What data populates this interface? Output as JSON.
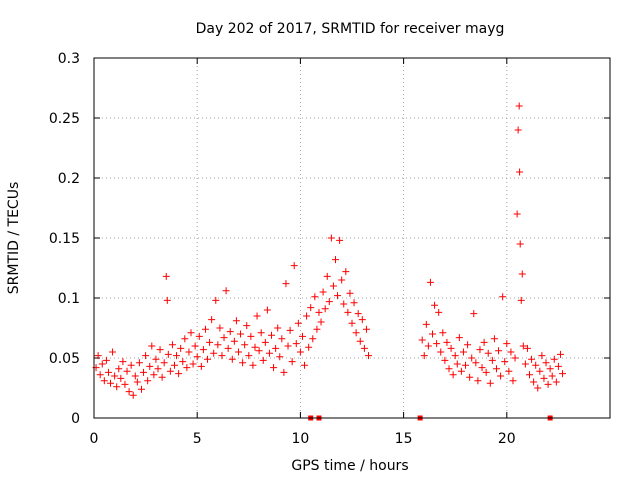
{
  "chart_data": {
    "type": "scatter",
    "title": "Day 202 of 2017, SRMTID for receiver mayg",
    "xlabel": "GPS time / hours",
    "ylabel": "SRMTID / TECUs",
    "xlim": [
      0,
      25
    ],
    "ylim": [
      0,
      0.3
    ],
    "xticks": [
      0,
      5,
      10,
      15,
      20
    ],
    "xtick_labels": [
      "0",
      "5",
      "10",
      "15",
      "20"
    ],
    "yticks": [
      0,
      0.05,
      0.1,
      0.15,
      0.2,
      0.25,
      0.3
    ],
    "ytick_labels": [
      "0",
      "0.05",
      "0.1",
      "0.15",
      "0.2",
      "0.25",
      "0.3"
    ],
    "grid": true,
    "marker": "+",
    "colors": {
      "series": "#ff0000",
      "grid": "#a0a0a0",
      "axis": "#000000"
    },
    "series": [
      {
        "name": "SRMTID",
        "gaps": [
          [
            13.4,
            15.8
          ],
          [
            22.9,
            25
          ]
        ],
        "points": [
          [
            0.1,
            0.042
          ],
          [
            0.2,
            0.052
          ],
          [
            0.3,
            0.036
          ],
          [
            0.4,
            0.045
          ],
          [
            0.5,
            0.031
          ],
          [
            0.6,
            0.048
          ],
          [
            0.7,
            0.038
          ],
          [
            0.8,
            0.029
          ],
          [
            0.9,
            0.055
          ],
          [
            1.0,
            0.035
          ],
          [
            1.1,
            0.026
          ],
          [
            1.2,
            0.041
          ],
          [
            1.3,
            0.033
          ],
          [
            1.4,
            0.047
          ],
          [
            1.5,
            0.028
          ],
          [
            1.6,
            0.039
          ],
          [
            1.7,
            0.022
          ],
          [
            1.8,
            0.044
          ],
          [
            1.9,
            0.019
          ],
          [
            2.0,
            0.035
          ],
          [
            2.1,
            0.03
          ],
          [
            2.2,
            0.046
          ],
          [
            2.3,
            0.024
          ],
          [
            2.4,
            0.038
          ],
          [
            2.5,
            0.052
          ],
          [
            2.6,
            0.031
          ],
          [
            2.7,
            0.043
          ],
          [
            2.8,
            0.06
          ],
          [
            2.9,
            0.036
          ],
          [
            3.0,
            0.049
          ],
          [
            3.1,
            0.041
          ],
          [
            3.2,
            0.057
          ],
          [
            3.3,
            0.034
          ],
          [
            3.4,
            0.046
          ],
          [
            3.5,
            0.118
          ],
          [
            3.55,
            0.098
          ],
          [
            3.6,
            0.053
          ],
          [
            3.7,
            0.039
          ],
          [
            3.8,
            0.061
          ],
          [
            3.9,
            0.044
          ],
          [
            4.0,
            0.052
          ],
          [
            4.1,
            0.037
          ],
          [
            4.2,
            0.058
          ],
          [
            4.3,
            0.047
          ],
          [
            4.4,
            0.066
          ],
          [
            4.5,
            0.042
          ],
          [
            4.6,
            0.055
          ],
          [
            4.7,
            0.071
          ],
          [
            4.8,
            0.045
          ],
          [
            4.9,
            0.06
          ],
          [
            5.0,
            0.051
          ],
          [
            5.1,
            0.068
          ],
          [
            5.2,
            0.043
          ],
          [
            5.3,
            0.057
          ],
          [
            5.4,
            0.074
          ],
          [
            5.5,
            0.049
          ],
          [
            5.6,
            0.063
          ],
          [
            5.7,
            0.082
          ],
          [
            5.8,
            0.054
          ],
          [
            5.9,
            0.098
          ],
          [
            6.0,
            0.061
          ],
          [
            6.1,
            0.075
          ],
          [
            6.2,
            0.052
          ],
          [
            6.3,
            0.067
          ],
          [
            6.4,
            0.106
          ],
          [
            6.5,
            0.058
          ],
          [
            6.6,
            0.072
          ],
          [
            6.7,
            0.049
          ],
          [
            6.8,
            0.064
          ],
          [
            6.9,
            0.081
          ],
          [
            7.0,
            0.055
          ],
          [
            7.1,
            0.07
          ],
          [
            7.2,
            0.046
          ],
          [
            7.3,
            0.061
          ],
          [
            7.4,
            0.077
          ],
          [
            7.5,
            0.052
          ],
          [
            7.6,
            0.068
          ],
          [
            7.7,
            0.044
          ],
          [
            7.8,
            0.059
          ],
          [
            7.9,
            0.085
          ],
          [
            8.0,
            0.056
          ],
          [
            8.1,
            0.071
          ],
          [
            8.2,
            0.048
          ],
          [
            8.3,
            0.063
          ],
          [
            8.4,
            0.09
          ],
          [
            8.5,
            0.054
          ],
          [
            8.6,
            0.069
          ],
          [
            8.7,
            0.042
          ],
          [
            8.8,
            0.058
          ],
          [
            8.9,
            0.075
          ],
          [
            9.0,
            0.051
          ],
          [
            9.1,
            0.066
          ],
          [
            9.2,
            0.038
          ],
          [
            9.3,
            0.112
          ],
          [
            9.4,
            0.06
          ],
          [
            9.5,
            0.073
          ],
          [
            9.6,
            0.047
          ],
          [
            9.7,
            0.127
          ],
          [
            9.8,
            0.062
          ],
          [
            9.9,
            0.079
          ],
          [
            10.0,
            0.055
          ],
          [
            10.1,
            0.068
          ],
          [
            10.2,
            0.044
          ],
          [
            10.3,
            0.085
          ],
          [
            10.4,
            0.059
          ],
          [
            10.5,
            0.092
          ],
          [
            10.6,
            0.066
          ],
          [
            10.7,
            0.101
          ],
          [
            10.8,
            0.074
          ],
          [
            10.9,
            0.088
          ],
          [
            11.0,
            0.08
          ],
          [
            11.1,
            0.105
          ],
          [
            11.2,
            0.091
          ],
          [
            11.3,
            0.118
          ],
          [
            11.4,
            0.097
          ],
          [
            11.5,
            0.15
          ],
          [
            11.6,
            0.11
          ],
          [
            11.7,
            0.132
          ],
          [
            11.8,
            0.102
          ],
          [
            11.9,
            0.148
          ],
          [
            12.0,
            0.115
          ],
          [
            12.1,
            0.095
          ],
          [
            12.2,
            0.122
          ],
          [
            12.3,
            0.088
          ],
          [
            12.4,
            0.104
          ],
          [
            12.5,
            0.079
          ],
          [
            12.6,
            0.096
          ],
          [
            12.7,
            0.071
          ],
          [
            12.8,
            0.087
          ],
          [
            12.9,
            0.064
          ],
          [
            13.0,
            0.082
          ],
          [
            13.1,
            0.058
          ],
          [
            13.2,
            0.074
          ],
          [
            13.3,
            0.052
          ],
          [
            15.9,
            0.065
          ],
          [
            16.0,
            0.052
          ],
          [
            16.1,
            0.078
          ],
          [
            16.2,
            0.06
          ],
          [
            16.3,
            0.113
          ],
          [
            16.4,
            0.07
          ],
          [
            16.5,
            0.094
          ],
          [
            16.6,
            0.062
          ],
          [
            16.7,
            0.088
          ],
          [
            16.8,
            0.055
          ],
          [
            16.9,
            0.071
          ],
          [
            17.0,
            0.048
          ],
          [
            17.1,
            0.063
          ],
          [
            17.2,
            0.041
          ],
          [
            17.3,
            0.058
          ],
          [
            17.4,
            0.036
          ],
          [
            17.5,
            0.052
          ],
          [
            17.6,
            0.045
          ],
          [
            17.7,
            0.067
          ],
          [
            17.8,
            0.039
          ],
          [
            17.9,
            0.055
          ],
          [
            18.0,
            0.044
          ],
          [
            18.1,
            0.061
          ],
          [
            18.2,
            0.034
          ],
          [
            18.3,
            0.05
          ],
          [
            18.4,
            0.087
          ],
          [
            18.5,
            0.046
          ],
          [
            18.6,
            0.031
          ],
          [
            18.7,
            0.057
          ],
          [
            18.8,
            0.042
          ],
          [
            18.9,
            0.063
          ],
          [
            19.0,
            0.038
          ],
          [
            19.1,
            0.054
          ],
          [
            19.2,
            0.029
          ],
          [
            19.3,
            0.048
          ],
          [
            19.4,
            0.066
          ],
          [
            19.5,
            0.041
          ],
          [
            19.6,
            0.056
          ],
          [
            19.7,
            0.035
          ],
          [
            19.8,
            0.101
          ],
          [
            19.9,
            0.047
          ],
          [
            20.0,
            0.062
          ],
          [
            20.1,
            0.039
          ],
          [
            20.2,
            0.055
          ],
          [
            20.3,
            0.031
          ],
          [
            20.4,
            0.05
          ],
          [
            20.5,
            0.17
          ],
          [
            20.55,
            0.24
          ],
          [
            20.6,
            0.26
          ],
          [
            20.62,
            0.205
          ],
          [
            20.65,
            0.145
          ],
          [
            20.7,
            0.098
          ],
          [
            20.75,
            0.12
          ],
          [
            20.8,
            0.06
          ],
          [
            20.9,
            0.045
          ],
          [
            21.0,
            0.058
          ],
          [
            21.1,
            0.036
          ],
          [
            21.2,
            0.049
          ],
          [
            21.3,
            0.03
          ],
          [
            21.4,
            0.044
          ],
          [
            21.5,
            0.025
          ],
          [
            21.6,
            0.039
          ],
          [
            21.7,
            0.052
          ],
          [
            21.8,
            0.033
          ],
          [
            21.9,
            0.046
          ],
          [
            22.0,
            0.028
          ],
          [
            22.1,
            0.041
          ],
          [
            22.2,
            0.035
          ],
          [
            22.3,
            0.049
          ],
          [
            22.4,
            0.03
          ],
          [
            22.5,
            0.043
          ],
          [
            22.6,
            0.053
          ],
          [
            22.7,
            0.037
          ]
        ]
      }
    ],
    "zero_markers_x": [
      10.5,
      10.9,
      15.8,
      22.1
    ]
  }
}
